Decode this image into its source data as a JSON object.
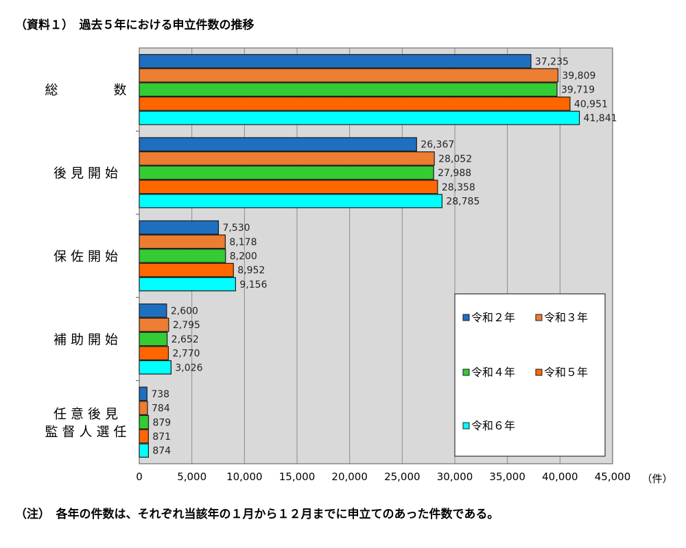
{
  "header": {
    "title": "（資料１）　過去５年における申立件数の推移"
  },
  "footer": {
    "note": "（注）　各年の件数は、それぞれ当該年の１月から１２月までに申立てのあった件数である。"
  },
  "chart_data": {
    "type": "bar",
    "orientation": "horizontal",
    "categories": [
      [
        "総　　　数"
      ],
      [
        "後見開始"
      ],
      [
        "保佐開始"
      ],
      [
        "補助開始"
      ],
      [
        "任意後見",
        "監督人選任"
      ]
    ],
    "series": [
      {
        "name": "令和２年",
        "color": "#1f6fc0",
        "values": [
          37235,
          26367,
          7530,
          2600,
          738
        ]
      },
      {
        "name": "令和３年",
        "color": "#ed7d31",
        "values": [
          39809,
          28052,
          8178,
          2795,
          784
        ]
      },
      {
        "name": "令和４年",
        "color": "#33cc33",
        "values": [
          39719,
          27988,
          8200,
          2652,
          879
        ]
      },
      {
        "name": "令和５年",
        "color": "#ff6600",
        "values": [
          40951,
          28358,
          8952,
          2770,
          871
        ]
      },
      {
        "name": "令和６年",
        "color": "#00ffff",
        "values": [
          41841,
          28785,
          9156,
          3026,
          874
        ]
      }
    ],
    "xlim": [
      0,
      45000
    ],
    "xticks": [
      0,
      5000,
      10000,
      15000,
      20000,
      25000,
      30000,
      35000,
      40000,
      45000
    ],
    "xticklabels": [
      "0",
      "5,000",
      "10,000",
      "15,000",
      "20,000",
      "25,000",
      "30,000",
      "35,000",
      "40,000",
      "45,000"
    ],
    "xlabel": "（件）",
    "grid": true,
    "legend_position": "bottom-right inside plot",
    "plot_background": "#d9d9d9"
  }
}
